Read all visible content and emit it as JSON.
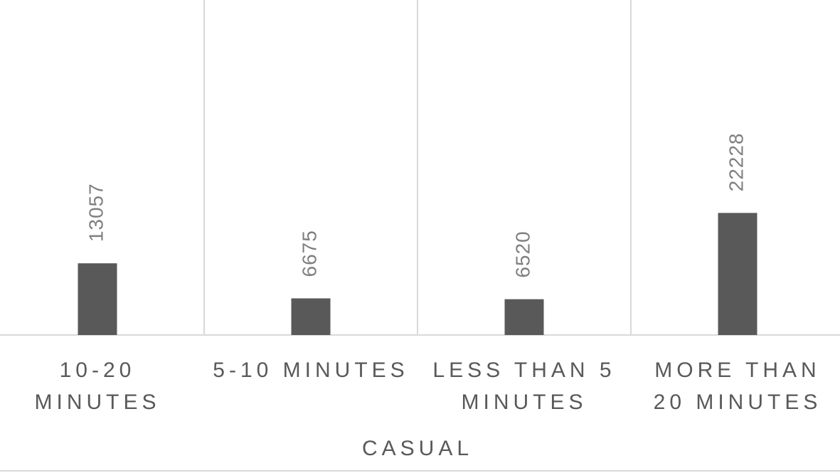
{
  "chart_data": {
    "type": "bar",
    "categories": [
      "10-20 MINUTES",
      "5-10 MINUTES",
      "LESS THAN 5 MINUTES",
      "MORE THAN 20 MINUTES"
    ],
    "values": [
      13057,
      6675,
      6520,
      22228
    ],
    "color": "#595959",
    "group_label": "CASUAL",
    "ylim": [
      0,
      61000
    ],
    "grid": true
  }
}
